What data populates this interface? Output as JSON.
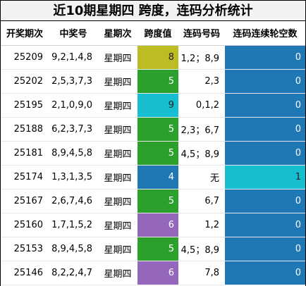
{
  "title": "近10期星期四 跨度，连码分析统计",
  "headers": [
    "开奖期次",
    "中奖号",
    "星期次",
    "跨度值",
    "连码号码",
    "连码连续轮空数"
  ],
  "colors": {
    "green": "#2ca02c",
    "olive": "#bcbd22",
    "cyan": "#17becf",
    "blue": "#1f77b4",
    "purple": "#9467bd",
    "streak_blue": "#1f77b4",
    "streak_cyan": "#17becf"
  },
  "rows": [
    {
      "issue": "25209",
      "numbers": "9,2,1,4,8",
      "weekday": "星期四",
      "span": "8",
      "span_color": "#bcbd22",
      "span_text_color": "#222222",
      "consec": "1,2；8,9",
      "streak": "0",
      "streak_color": "#1f77b4"
    },
    {
      "issue": "25202",
      "numbers": "2,5,3,7,3",
      "weekday": "星期四",
      "span": "5",
      "span_color": "#2ca02c",
      "span_text_color": "#ffffff",
      "consec": "2,3",
      "streak": "0",
      "streak_color": "#1f77b4"
    },
    {
      "issue": "25195",
      "numbers": "2,1,0,9,0",
      "weekday": "星期四",
      "span": "9",
      "span_color": "#17becf",
      "span_text_color": "#222222",
      "consec": "0,1,2",
      "streak": "0",
      "streak_color": "#1f77b4"
    },
    {
      "issue": "25188",
      "numbers": "6,2,3,7,3",
      "weekday": "星期四",
      "span": "5",
      "span_color": "#2ca02c",
      "span_text_color": "#ffffff",
      "consec": "2,3；6,7",
      "streak": "0",
      "streak_color": "#1f77b4"
    },
    {
      "issue": "25181",
      "numbers": "8,9,4,5,8",
      "weekday": "星期四",
      "span": "5",
      "span_color": "#2ca02c",
      "span_text_color": "#ffffff",
      "consec": "4,5；8,9",
      "streak": "0",
      "streak_color": "#1f77b4"
    },
    {
      "issue": "25174",
      "numbers": "1,3,1,3,5",
      "weekday": "星期四",
      "span": "4",
      "span_color": "#1f77b4",
      "span_text_color": "#ffffff",
      "consec": "无",
      "streak": "1",
      "streak_color": "#17becf"
    },
    {
      "issue": "25167",
      "numbers": "2,6,7,4,6",
      "weekday": "星期四",
      "span": "5",
      "span_color": "#2ca02c",
      "span_text_color": "#ffffff",
      "consec": "6,7",
      "streak": "0",
      "streak_color": "#1f77b4"
    },
    {
      "issue": "25160",
      "numbers": "1,7,1,5,2",
      "weekday": "星期四",
      "span": "6",
      "span_color": "#9467bd",
      "span_text_color": "#ffffff",
      "consec": "1,2",
      "streak": "0",
      "streak_color": "#1f77b4"
    },
    {
      "issue": "25153",
      "numbers": "8,9,4,5,8",
      "weekday": "星期四",
      "span": "5",
      "span_color": "#2ca02c",
      "span_text_color": "#ffffff",
      "consec": "4,5；8,9",
      "streak": "0",
      "streak_color": "#1f77b4"
    },
    {
      "issue": "25146",
      "numbers": "8,2,2,4,7",
      "weekday": "星期四",
      "span": "6",
      "span_color": "#9467bd",
      "span_text_color": "#ffffff",
      "consec": "7,8",
      "streak": "0",
      "streak_color": "#1f77b4"
    }
  ]
}
